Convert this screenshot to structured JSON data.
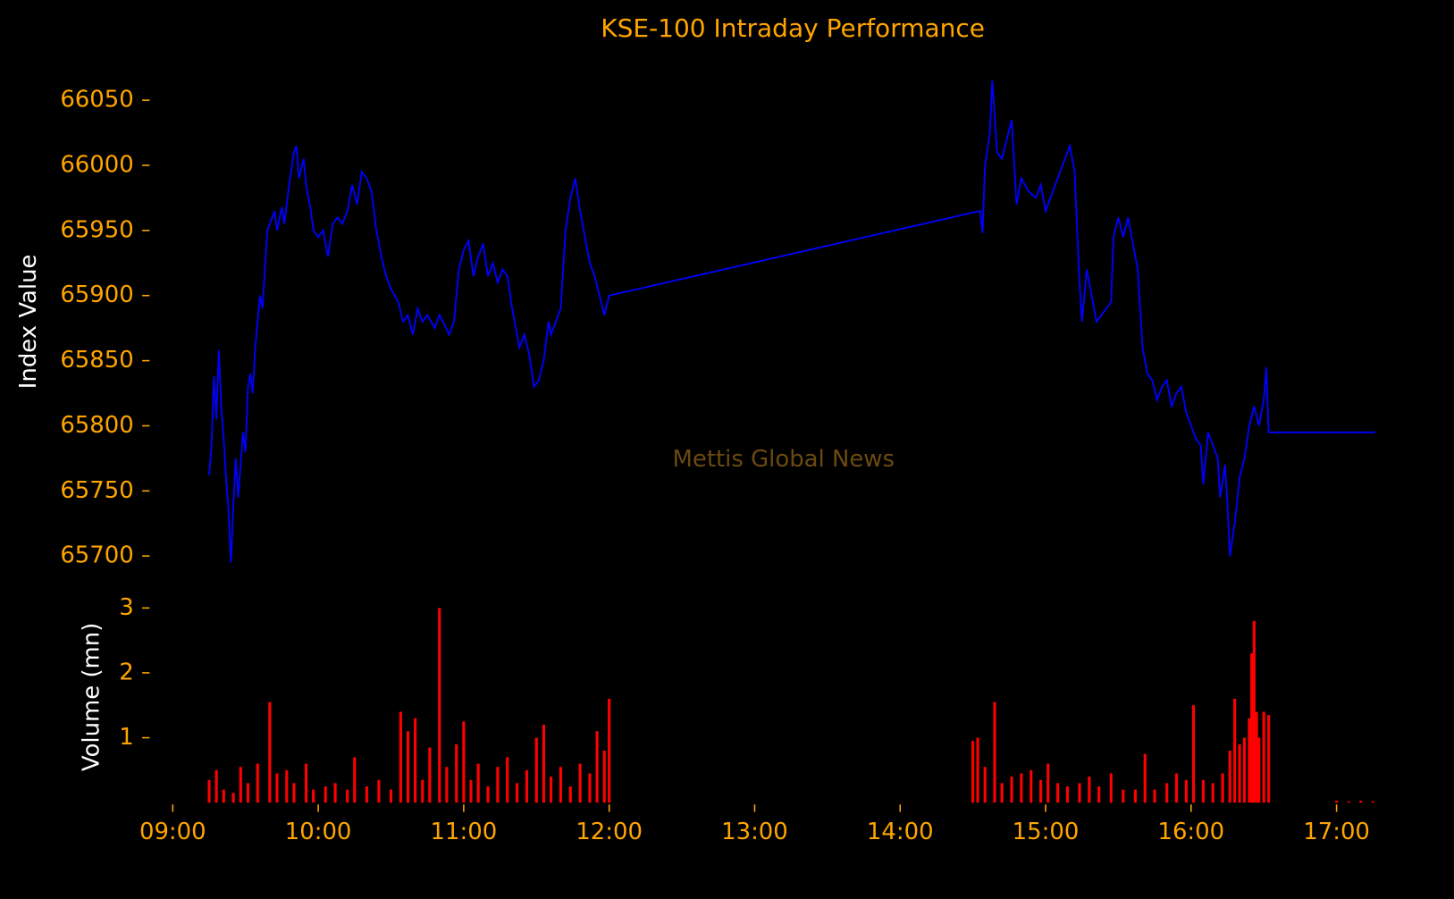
{
  "chart_data": [
    {
      "type": "line",
      "title": "KSE-100 Intraday Performance",
      "ylabel": "Index Value",
      "watermark": "Mettis Global News",
      "color": "#0000ff",
      "xlim": [
        "09:00",
        "17:20"
      ],
      "ylim": [
        65690,
        66075
      ],
      "yticks": [
        65700,
        65750,
        65800,
        65850,
        65900,
        65950,
        66000,
        66050
      ],
      "x": [
        "09:15",
        "09:16",
        "09:17",
        "09:18",
        "09:19",
        "09:20",
        "09:21",
        "09:22",
        "09:23",
        "09:24",
        "09:25",
        "09:26",
        "09:27",
        "09:28",
        "09:29",
        "09:30",
        "09:31",
        "09:32",
        "09:33",
        "09:34",
        "09:35",
        "09:36",
        "09:37",
        "09:38",
        "09:39",
        "09:40",
        "09:42",
        "09:43",
        "09:45",
        "09:46",
        "09:48",
        "09:50",
        "09:51",
        "09:52",
        "09:54",
        "09:55",
        "09:57",
        "09:58",
        "10:00",
        "10:02",
        "10:04",
        "10:06",
        "10:08",
        "10:10",
        "10:12",
        "10:14",
        "10:16",
        "10:18",
        "10:20",
        "10:22",
        "10:24",
        "10:26",
        "10:28",
        "10:30",
        "10:33",
        "10:35",
        "10:37",
        "10:39",
        "10:41",
        "10:43",
        "10:45",
        "10:48",
        "10:50",
        "10:52",
        "10:54",
        "10:56",
        "10:58",
        "11:00",
        "11:02",
        "11:04",
        "11:06",
        "11:08",
        "11:10",
        "11:12",
        "11:14",
        "11:16",
        "11:18",
        "11:20",
        "11:22",
        "11:23",
        "11:25",
        "11:27",
        "11:29",
        "11:31",
        "11:33",
        "11:35",
        "11:36",
        "11:38",
        "11:40",
        "11:42",
        "11:44",
        "11:46",
        "11:48",
        "11:50",
        "11:52",
        "11:54",
        "11:56",
        "11:58",
        "12:00",
        "14:33",
        "14:34",
        "14:35",
        "14:37",
        "14:38",
        "14:40",
        "14:42",
        "14:44",
        "14:46",
        "14:48",
        "14:50",
        "14:53",
        "14:56",
        "14:58",
        "15:00",
        "15:02",
        "15:04",
        "15:06",
        "15:08",
        "15:10",
        "15:12",
        "15:13",
        "15:14",
        "15:15",
        "15:17",
        "15:19",
        "15:21",
        "15:23",
        "15:25",
        "15:27",
        "15:28",
        "15:30",
        "15:32",
        "15:34",
        "15:36",
        "15:38",
        "15:40",
        "15:42",
        "15:44",
        "15:46",
        "15:48",
        "15:50",
        "15:52",
        "15:54",
        "15:56",
        "15:58",
        "16:00",
        "16:02",
        "16:04",
        "16:05",
        "16:07",
        "16:09",
        "16:11",
        "16:12",
        "16:14",
        "16:15",
        "16:16",
        "16:18",
        "16:20",
        "16:22",
        "16:24",
        "16:26",
        "16:28",
        "16:30",
        "16:31",
        "16:32",
        "17:16"
      ],
      "values": [
        65762,
        65785,
        65838,
        65805,
        65858,
        65815,
        65790,
        65760,
        65735,
        65695,
        65740,
        65775,
        65745,
        65770,
        65795,
        65780,
        65830,
        65840,
        65825,
        65860,
        65880,
        65900,
        65890,
        65920,
        65950,
        65955,
        65965,
        65950,
        65968,
        65955,
        65985,
        66010,
        66015,
        65990,
        66005,
        65985,
        65965,
        65950,
        65945,
        65950,
        65930,
        65955,
        65960,
        65955,
        65965,
        65985,
        65970,
        65995,
        65990,
        65980,
        65950,
        65930,
        65915,
        65905,
        65895,
        65880,
        65885,
        65870,
        65890,
        65880,
        65885,
        65875,
        65885,
        65878,
        65870,
        65880,
        65920,
        65935,
        65942,
        65915,
        65930,
        65940,
        65915,
        65925,
        65910,
        65920,
        65915,
        65890,
        65870,
        65860,
        65870,
        65855,
        65830,
        65835,
        65850,
        65880,
        65870,
        65880,
        65890,
        65950,
        65975,
        65990,
        65965,
        65945,
        65925,
        65915,
        65900,
        65885,
        65900,
        65965,
        65948,
        66000,
        66025,
        66065,
        66010,
        66005,
        66020,
        66035,
        65970,
        65990,
        65980,
        65975,
        65985,
        65965,
        65975,
        65985,
        65995,
        66005,
        66015,
        65995,
        65950,
        65910,
        65880,
        65920,
        65900,
        65880,
        65885,
        65890,
        65895,
        65945,
        65960,
        65945,
        65960,
        65940,
        65920,
        65860,
        65840,
        65835,
        65820,
        65830,
        65835,
        65815,
        65825,
        65830,
        65810,
        65800,
        65790,
        65785,
        65755,
        65795,
        65785,
        65775,
        65745,
        65770,
        65740,
        65700,
        65725,
        65760,
        65775,
        65800,
        65815,
        65800,
        65820,
        65845,
        65795,
        65795
      ]
    },
    {
      "type": "bar",
      "ylabel": "Volume (mn)",
      "color": "#ff0000",
      "xlim": [
        "09:00",
        "17:20"
      ],
      "ylim": [
        0,
        3
      ],
      "yticks": [
        1,
        2,
        3
      ],
      "xticks": [
        "09:00",
        "10:00",
        "11:00",
        "12:00",
        "13:00",
        "14:00",
        "15:00",
        "16:00",
        "17:00"
      ],
      "x": [
        "09:15",
        "09:18",
        "09:21",
        "09:25",
        "09:28",
        "09:31",
        "09:35",
        "09:40",
        "09:43",
        "09:47",
        "09:50",
        "09:55",
        "09:58",
        "10:03",
        "10:07",
        "10:12",
        "10:15",
        "10:20",
        "10:25",
        "10:30",
        "10:34",
        "10:37",
        "10:40",
        "10:43",
        "10:46",
        "10:50",
        "10:53",
        "10:57",
        "11:00",
        "11:03",
        "11:06",
        "11:10",
        "11:14",
        "11:18",
        "11:22",
        "11:26",
        "11:30",
        "11:33",
        "11:36",
        "11:40",
        "11:44",
        "11:48",
        "11:52",
        "11:55",
        "11:58",
        "12:00",
        "14:30",
        "14:32",
        "14:35",
        "14:39",
        "14:42",
        "14:46",
        "14:50",
        "14:54",
        "14:58",
        "15:01",
        "15:05",
        "15:09",
        "15:14",
        "15:18",
        "15:22",
        "15:27",
        "15:32",
        "15:37",
        "15:41",
        "15:45",
        "15:50",
        "15:54",
        "15:58",
        "16:01",
        "16:05",
        "16:09",
        "16:13",
        "16:16",
        "16:18",
        "16:20",
        "16:22",
        "16:24",
        "16:25",
        "16:26",
        "16:27",
        "16:28",
        "16:30",
        "16:32",
        "17:00",
        "17:05",
        "17:10",
        "17:15"
      ],
      "values": [
        0.35,
        0.5,
        0.2,
        0.15,
        0.55,
        0.3,
        0.6,
        1.55,
        0.45,
        0.5,
        0.3,
        0.6,
        0.2,
        0.25,
        0.3,
        0.2,
        0.7,
        0.25,
        0.35,
        0.2,
        1.4,
        1.1,
        1.3,
        0.35,
        0.85,
        3.0,
        0.55,
        0.9,
        1.25,
        0.35,
        0.6,
        0.25,
        0.55,
        0.7,
        0.3,
        0.5,
        1.0,
        1.2,
        0.4,
        0.55,
        0.25,
        0.6,
        0.45,
        1.1,
        0.8,
        1.6,
        0.95,
        1.0,
        0.55,
        1.55,
        0.3,
        0.4,
        0.45,
        0.5,
        0.35,
        0.6,
        0.3,
        0.25,
        0.3,
        0.4,
        0.25,
        0.45,
        0.2,
        0.2,
        0.75,
        0.2,
        0.3,
        0.45,
        0.35,
        1.5,
        0.35,
        0.3,
        0.45,
        0.8,
        1.6,
        0.9,
        1.0,
        1.3,
        2.3,
        2.8,
        1.4,
        1.0,
        1.4,
        1.35,
        0.03,
        0.02,
        0.03,
        0.02
      ]
    }
  ]
}
